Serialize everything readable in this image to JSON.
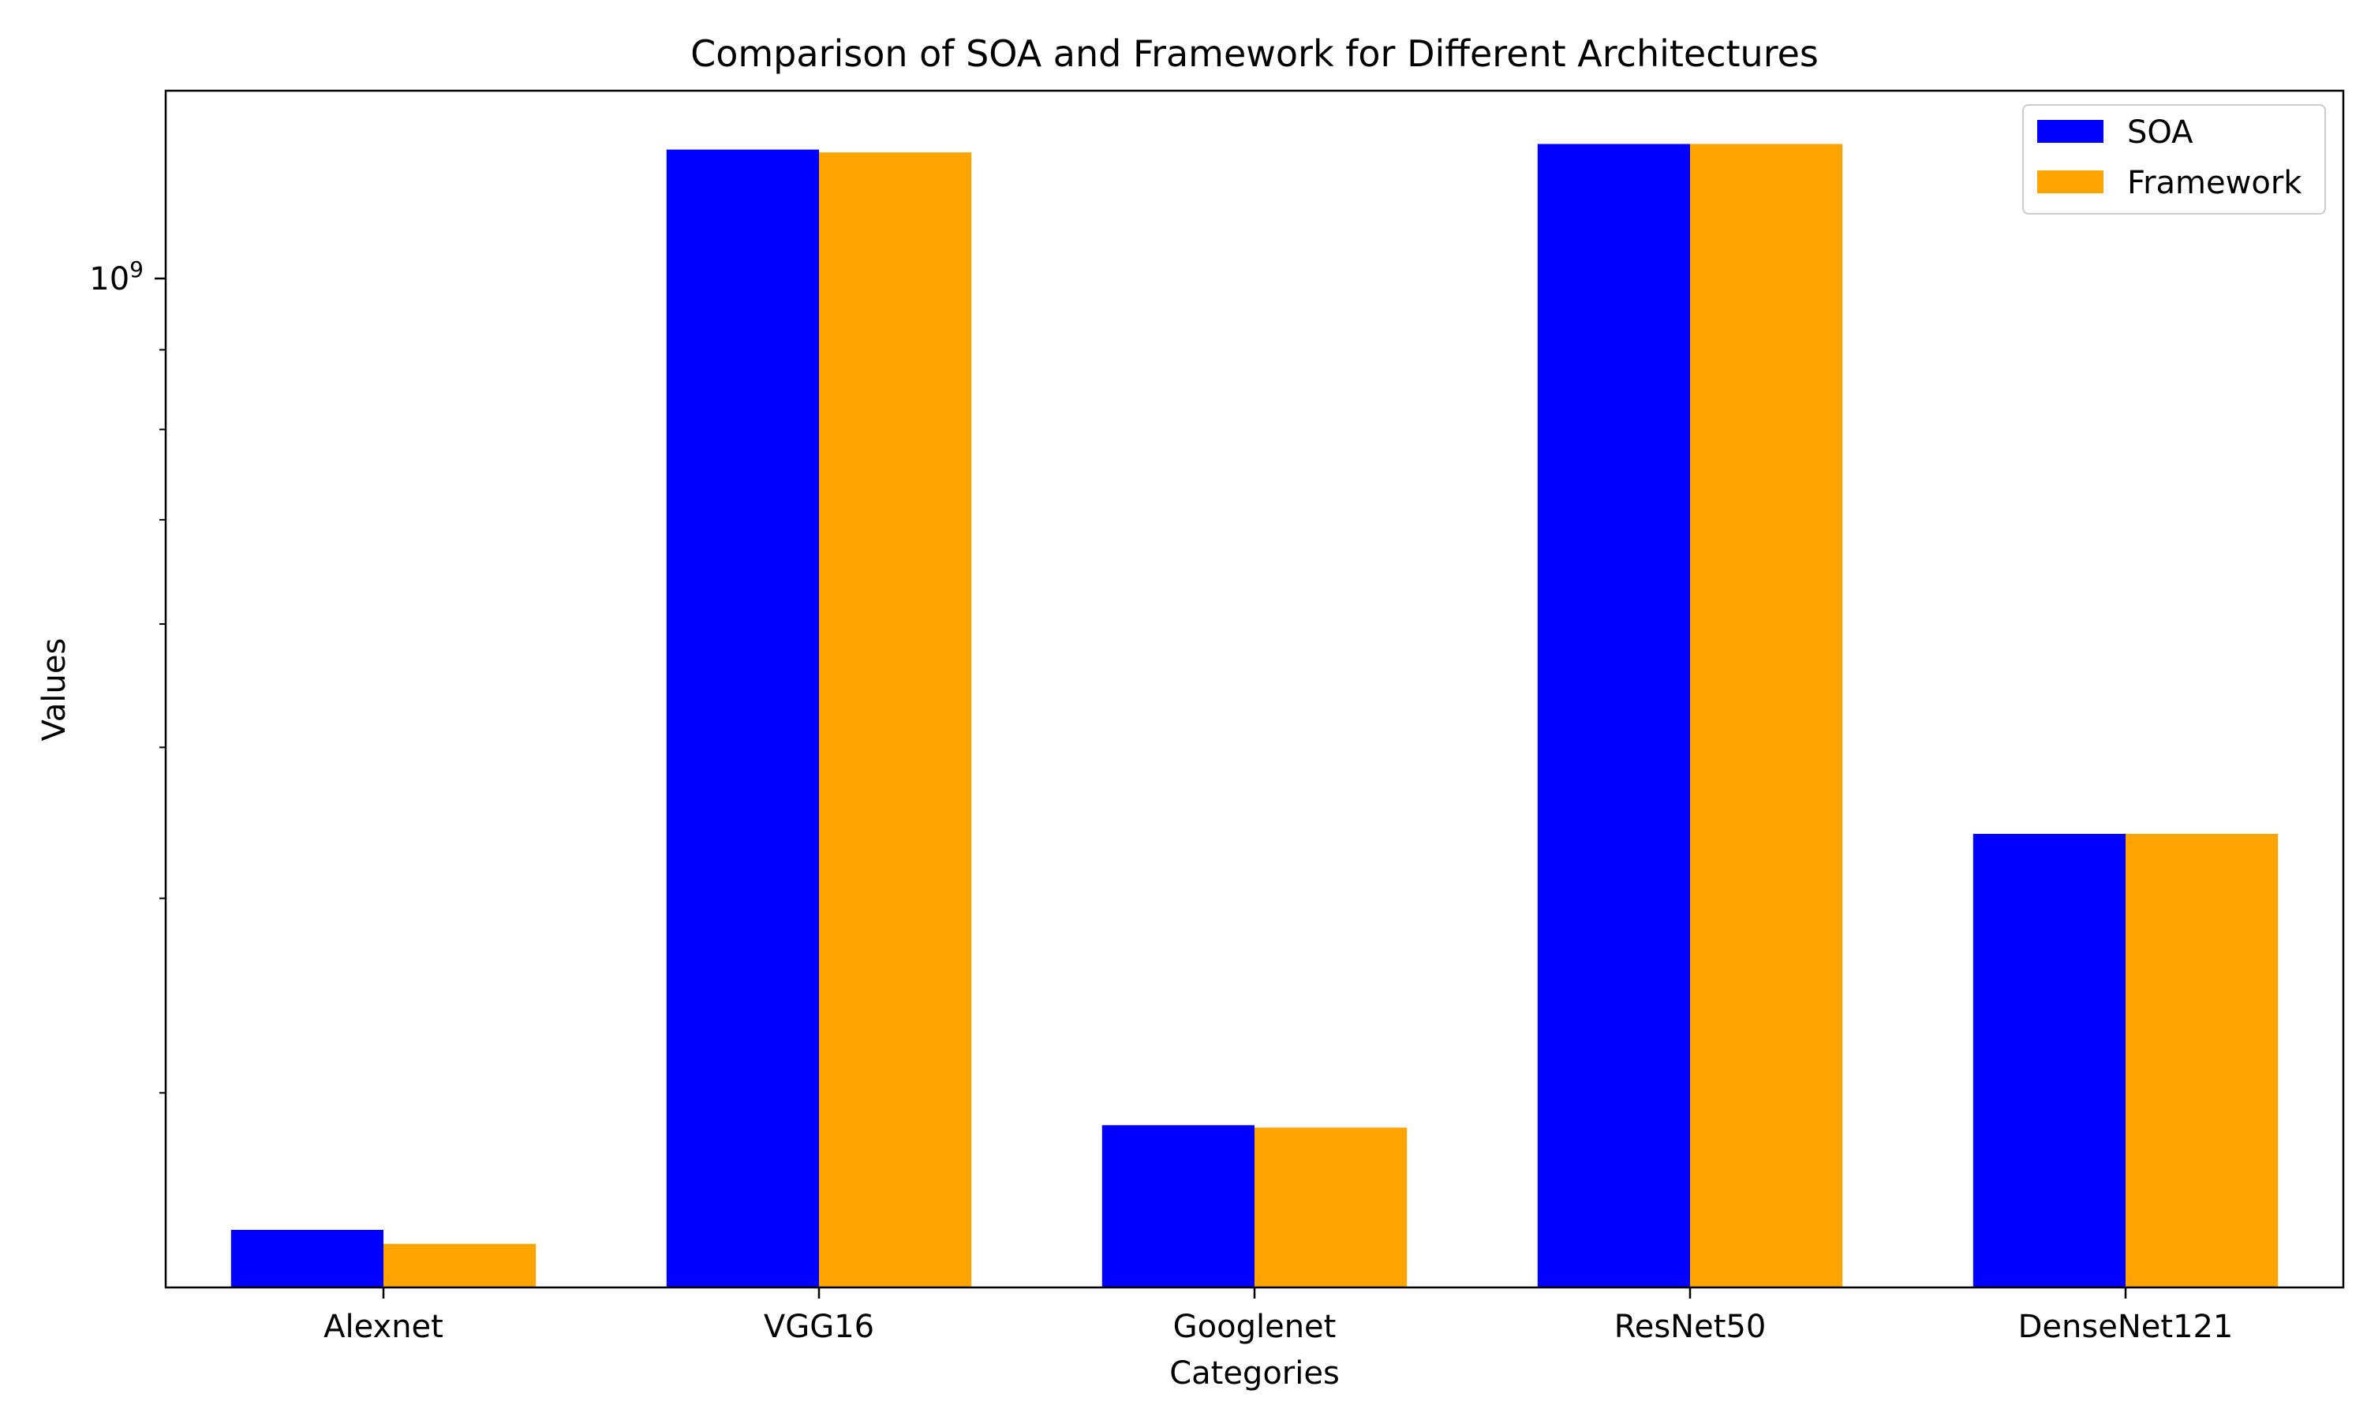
{
  "chart_data": {
    "type": "bar",
    "title": "Comparison of SOA and Framework for Different Architectures",
    "xlabel": "Categories",
    "ylabel": "Values",
    "yscale": "log",
    "ylim": [
      225000000,
      1320000000
    ],
    "y_major_ticks": [
      {
        "value": 1000000000,
        "base": "10",
        "exp": "9"
      }
    ],
    "y_minor_ticks": [
      300000000,
      400000000,
      500000000,
      600000000,
      700000000,
      800000000,
      900000000
    ],
    "categories": [
      "Alexnet",
      "VGG16",
      "Googlenet",
      "ResNet50",
      "DenseNet121"
    ],
    "series": [
      {
        "name": "SOA",
        "color": "#0000ff",
        "values": [
          245000000,
          1210000000,
          286000000,
          1220000000,
          440000000
        ]
      },
      {
        "name": "Framework",
        "color": "#ffa500",
        "values": [
          240000000,
          1205000000,
          285000000,
          1220000000,
          440000000
        ]
      }
    ],
    "grid": false,
    "legend_position": "top-right"
  }
}
